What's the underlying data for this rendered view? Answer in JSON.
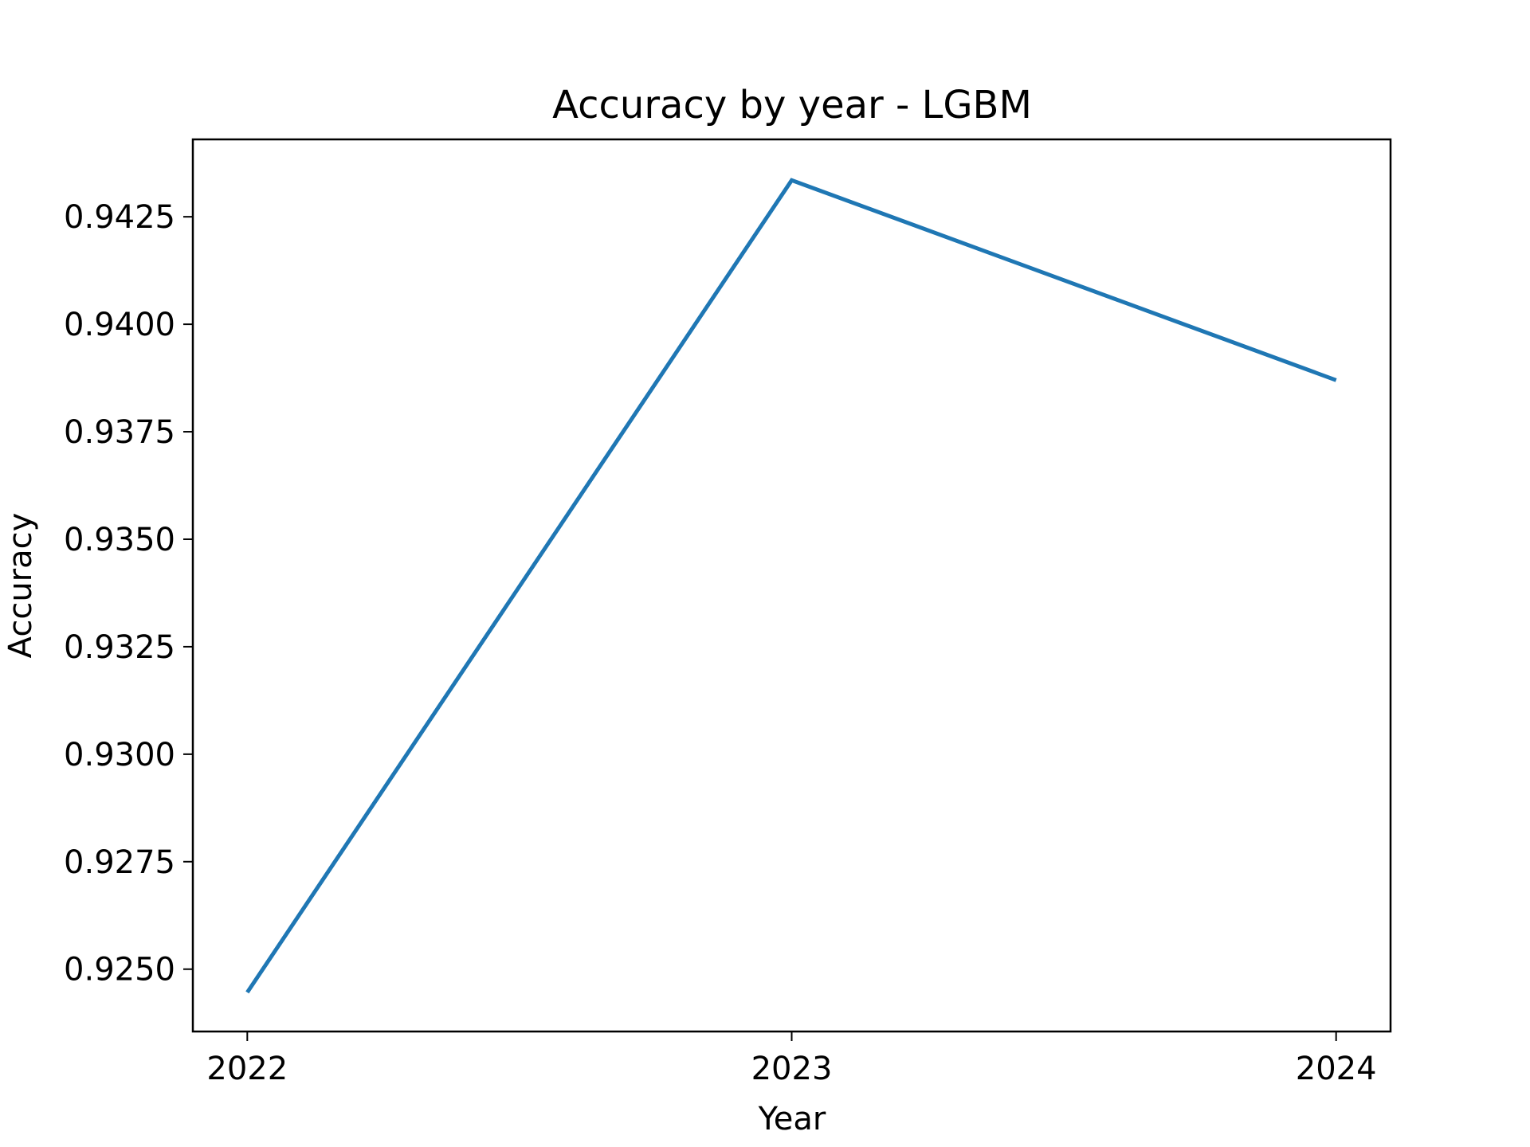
{
  "chart_data": {
    "type": "line",
    "title": "Accuracy by year - LGBM",
    "xlabel": "Year",
    "ylabel": "Accuracy",
    "x": [
      2022,
      2023,
      2024
    ],
    "x_tick_labels": [
      "2022",
      "2023",
      "2024"
    ],
    "series": [
      {
        "values": [
          0.92446,
          0.94335,
          0.9387
        ],
        "color": "#1f77b4"
      }
    ],
    "y_ticks": [
      0.925,
      0.9275,
      0.93,
      0.9325,
      0.935,
      0.9375,
      0.94,
      0.9425
    ],
    "y_tick_labels": [
      "0.9250",
      "0.9275",
      "0.9300",
      "0.9325",
      "0.9350",
      "0.9375",
      "0.9400",
      "0.9425"
    ],
    "xlim": [
      2021.9,
      2024.1
    ],
    "ylim": [
      0.92355,
      0.9443
    ],
    "grid": false,
    "legend": false
  }
}
